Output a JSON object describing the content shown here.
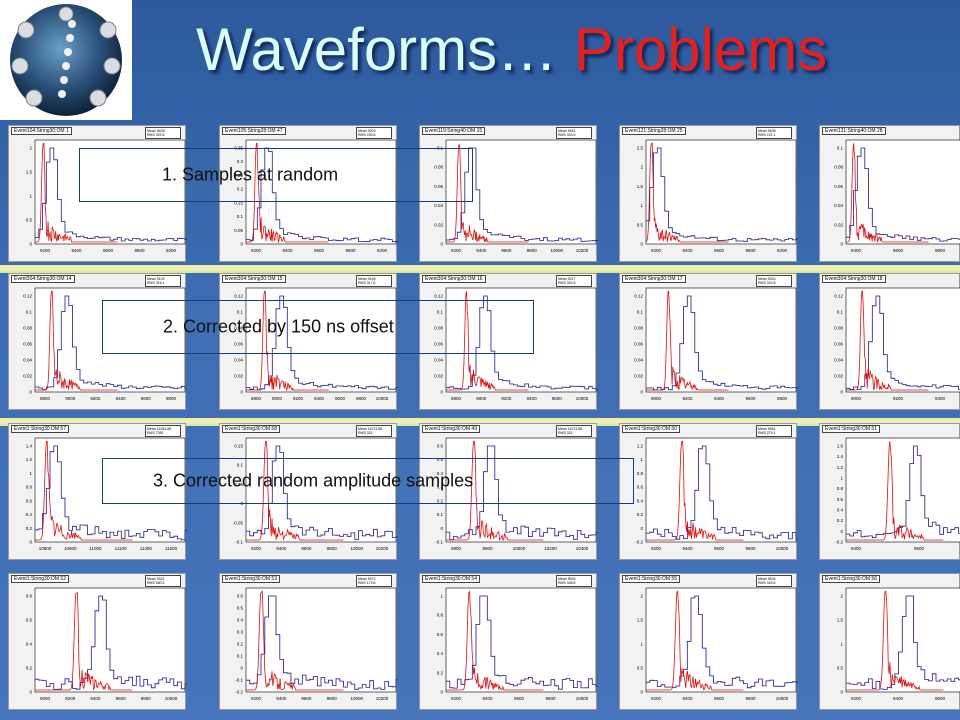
{
  "slide": {
    "title_part1": "Waveforms… ",
    "title_part2": "Problems",
    "title_color": "#d7fff6",
    "accent_color": "#e02222",
    "logo_icon": "detector-string-logo"
  },
  "annotations": [
    {
      "text": "1. Samples at random"
    },
    {
      "text": "2. Corrected by 150 ns offset"
    },
    {
      "text": "3. Corrected random amplitude samples"
    }
  ],
  "rows": [
    {
      "panels": [
        {
          "title": "Event104:String30:OM 1",
          "mean": "9408",
          "rms": "322.6",
          "yticks": [
            "0",
            "0.5",
            "1",
            "1.5",
            "2"
          ],
          "xticks": [
            "9200",
            "9400",
            "9600",
            "9800",
            "9200"
          ]
        },
        {
          "title": "Event105:String28:OM 47",
          "mean": "9209",
          "rms": "209.6",
          "yticks": [
            "0",
            "0.05",
            "0.1",
            "0.15",
            "0.2",
            "0.25",
            "0.3",
            "0.35"
          ],
          "xticks": [
            "9200",
            "9400",
            "9600",
            "9800",
            "9200"
          ]
        },
        {
          "title": "Event119:String40:OM 15",
          "mean": "9461",
          "rms": "323.9",
          "yticks": [
            "0",
            "0.02",
            "0.04",
            "0.06",
            "0.08",
            "0.1"
          ],
          "xticks": [
            "9200",
            "9400",
            "9600",
            "9800",
            "10000",
            "10200"
          ]
        },
        {
          "title": "Event121:String28:OM 25",
          "mean": "9408",
          "rms": "221.1",
          "yticks": [
            "0",
            "0.5",
            "1",
            "1.5",
            "2",
            "2.5"
          ],
          "xticks": [
            "9200",
            "9400",
            "9600",
            "9800",
            "9200"
          ]
        },
        {
          "title": "Event131:String40:OM 28",
          "mean": "",
          "rms": "",
          "yticks": [
            "0",
            "0.02",
            "0.04",
            "0.06",
            "0.08",
            "0.1"
          ],
          "xticks": [
            "9400",
            "9600",
            "9800",
            "10000"
          ]
        }
      ]
    },
    {
      "panels": [
        {
          "title": "Event304:String30:OM 14",
          "mean": "9109",
          "rms": "316.1",
          "yticks": [
            "0",
            "0.02",
            "0.04",
            "0.06",
            "0.08",
            "0.1",
            "0.12"
          ],
          "xticks": [
            "9800",
            "9000",
            "9200",
            "9400",
            "9600",
            "9800"
          ]
        },
        {
          "title": "Event304:String30:OM 15",
          "mean": "9169",
          "rms": "317.6",
          "yticks": [
            "0",
            "0.02",
            "0.04",
            "0.06",
            "0.08",
            "0.1",
            "0.12"
          ],
          "xticks": [
            "8800",
            "9000",
            "9200",
            "9400",
            "9600",
            "9800",
            "10000"
          ]
        },
        {
          "title": "Event304:String30:OM 16",
          "mean": "9217",
          "rms": "320.3",
          "yticks": [
            "0",
            "0.02",
            "0.04",
            "0.06",
            "0.08",
            "0.1",
            "0.12"
          ],
          "xticks": [
            "9800",
            "9000",
            "9200",
            "9400",
            "9600",
            "10000"
          ]
        },
        {
          "title": "Event304:String30:OM 17",
          "mean": "9324",
          "rms": "322.8",
          "yticks": [
            "0",
            "0.02",
            "0.04",
            "0.06",
            "0.08",
            "0.1",
            "0.12"
          ],
          "xticks": [
            "9000",
            "9200",
            "9400",
            "9600",
            "9800"
          ]
        },
        {
          "title": "Event304:String30:OM 18",
          "mean": "",
          "rms": "",
          "yticks": [
            "0",
            "0.02",
            "0.04",
            "0.06",
            "0.08",
            "0.1",
            "0.12"
          ],
          "xticks": [
            "9000",
            "9200",
            "9400",
            "9600"
          ]
        }
      ]
    },
    {
      "panels": [
        {
          "title": "Event1:String30:OM 57",
          "mean": "11054.88",
          "rms": "7081",
          "yticks": [
            "0",
            "0.2",
            "0.4",
            "0.6",
            "0.8",
            "1",
            "1.2",
            "1.4"
          ],
          "xticks": [
            "10800",
            "10900",
            "11000",
            "11100",
            "11400",
            "11600"
          ]
        },
        {
          "title": "Event1:String30:OM 58",
          "mean": "11074.88",
          "rms": "321",
          "yticks": [
            "-0.1",
            "-0.05",
            "0",
            "0.05",
            "0.1",
            "0.15"
          ],
          "xticks": [
            "9200",
            "9400",
            "9600",
            "9800",
            "10000",
            "10200"
          ]
        },
        {
          "title": "Event1:String30:OM 49",
          "mean": "11074.88",
          "rms": "321",
          "yticks": [
            "-0.1",
            "0",
            "0.1",
            "0.2",
            "0.3",
            "0.4",
            "0.5",
            "0.6"
          ],
          "xticks": [
            "9800",
            "9900",
            "10000",
            "10200",
            "10400"
          ]
        },
        {
          "title": "Event1:String30:OM 50",
          "mean": "9561",
          "rms": "279.1",
          "yticks": [
            "-0.2",
            "0",
            "0.2",
            "0.4",
            "0.6",
            "0.8",
            "1",
            "1.2"
          ],
          "xticks": [
            "9200",
            "9400",
            "9600",
            "9800",
            "10000"
          ]
        },
        {
          "title": "Event1:String30:OM 51",
          "mean": "",
          "rms": "",
          "yticks": [
            "-0.2",
            "0",
            "0.2",
            "0.4",
            "0.6",
            "0.8",
            "1",
            "1.2",
            "1.4",
            "1.6"
          ],
          "xticks": [
            "9400",
            "9600",
            "9800"
          ]
        }
      ]
    },
    {
      "panels": [
        {
          "title": "Event1:String30:OM 52",
          "mean": "9321",
          "rms": "580.3",
          "yticks": [
            "0",
            "0.2",
            "0.4",
            "0.6",
            "0.8"
          ],
          "xticks": [
            "9000",
            "9200",
            "9400",
            "9600",
            "9800",
            "10000"
          ]
        },
        {
          "title": "Event1:String30:OM 53",
          "mean": "9972",
          "rms": "179.6",
          "yticks": [
            "-0.2",
            "-0.1",
            "0",
            "0.1",
            "0.2",
            "0.3",
            "0.4",
            "0.5",
            "0.6"
          ],
          "xticks": [
            "9200",
            "9400",
            "9600",
            "9800",
            "10000",
            "10200"
          ]
        },
        {
          "title": "Event1:String30:OM 54",
          "mean": "9594",
          "rms": "345.8",
          "yticks": [
            "0",
            "0.2",
            "0.4",
            "0.6",
            "0.8",
            "1"
          ],
          "xticks": [
            "9200",
            "9400",
            "9600",
            "9800",
            "10000"
          ]
        },
        {
          "title": "Event1:String30:OM 55",
          "mean": "9534",
          "rms": "329.6",
          "yticks": [
            "0",
            "0.5",
            "1",
            "1.5",
            "2"
          ],
          "xticks": [
            "9200",
            "9400",
            "9600",
            "9800",
            "10000"
          ]
        },
        {
          "title": "Event1:String30:OM 56",
          "mean": "",
          "rms": "",
          "yticks": [
            "0",
            "0.5",
            "1",
            "1.5",
            "2"
          ],
          "xticks": [
            "9200",
            "9400",
            "9600",
            "9800"
          ]
        }
      ]
    }
  ],
  "stats_labels": {
    "mean": "Mean",
    "rms": "RMS"
  },
  "colors": {
    "histogram_blue": "#1a1a8c",
    "waveform_red": "#e01010",
    "annotation_border": "#173a82"
  }
}
